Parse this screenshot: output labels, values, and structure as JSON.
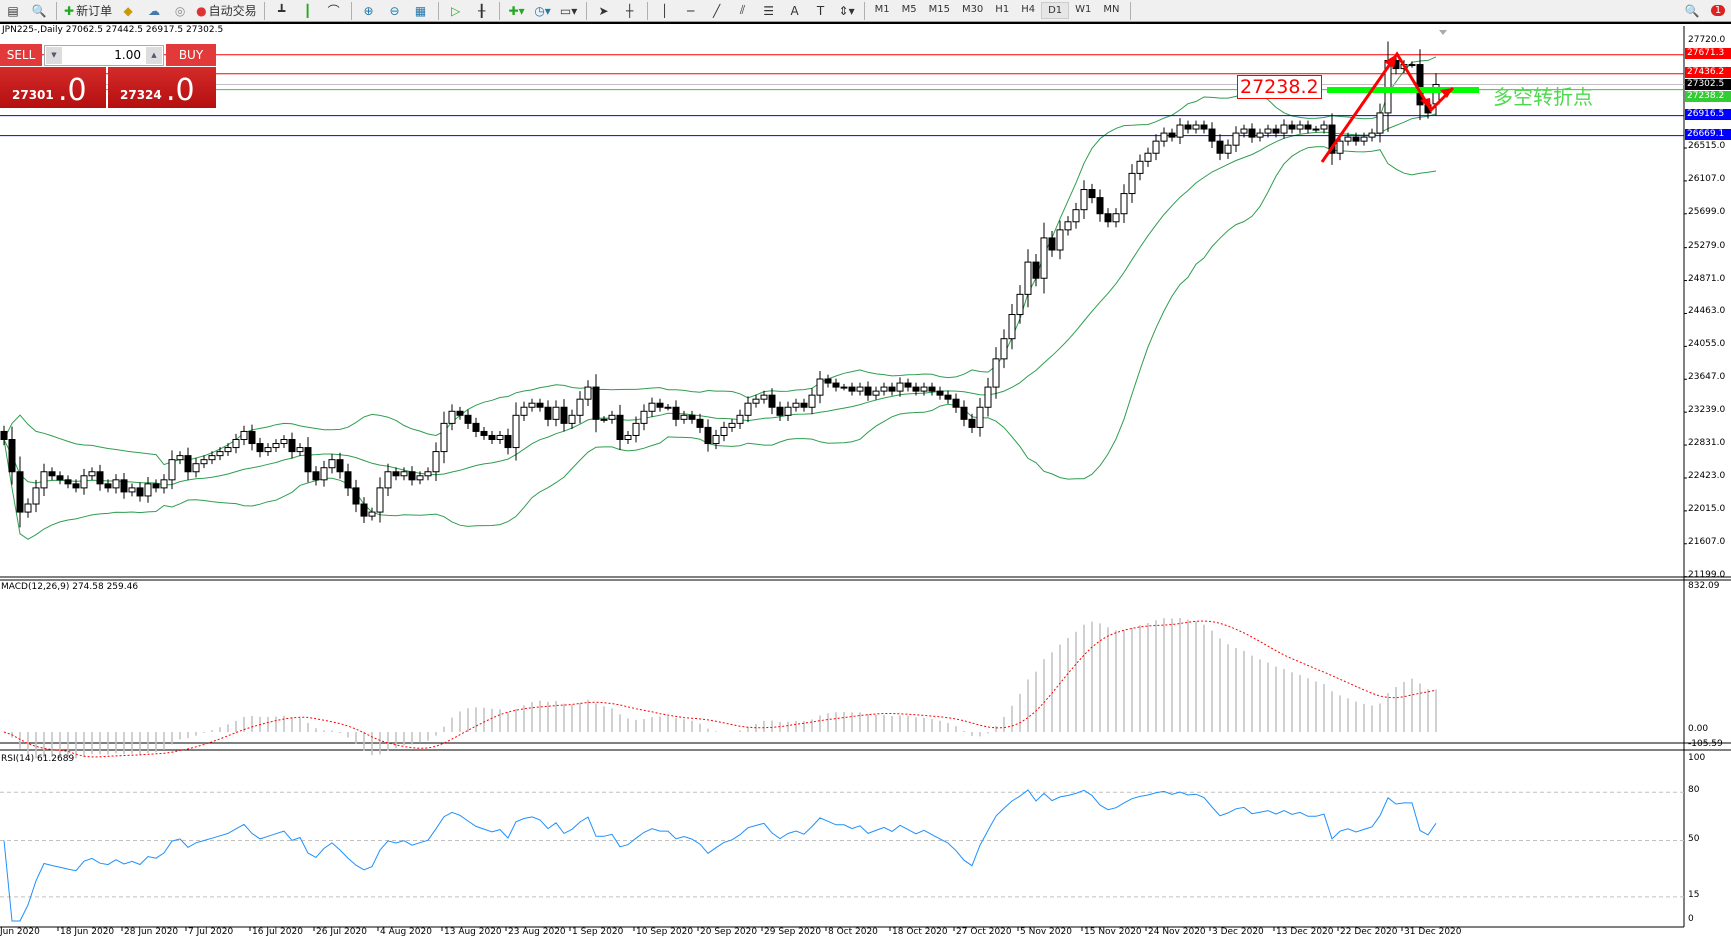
{
  "toolbar": {
    "new_order": "新订单",
    "auto_trading": "自动交易",
    "timeframes": [
      "M1",
      "M5",
      "M15",
      "M30",
      "H1",
      "H4",
      "D1",
      "W1",
      "MN"
    ],
    "active_timeframe": "D1",
    "notification_count": "1"
  },
  "chart": {
    "symbol_line": "JPN225-,Daily  27062.5 27442.5 26917.5 27302.5"
  },
  "trade_panel": {
    "sell_label": "SELL",
    "buy_label": "BUY",
    "lot_value": "1.00",
    "sell_price_main": "27301",
    "sell_price_decimal": ".0",
    "buy_price_main": "27324",
    "buy_price_decimal": ".0"
  },
  "price_axis": {
    "ticks": [
      "26515.0",
      "26107.0",
      "25699.0",
      "25279.0",
      "24871.0",
      "24463.0",
      "24055.0",
      "23647.0",
      "23239.0",
      "22831.0",
      "22423.0",
      "22015.0",
      "21607.0",
      "21199.0"
    ],
    "top_label": "27720.0",
    "lines": [
      {
        "price": 27671.3,
        "label": "27671.3",
        "color": "#ff0000"
      },
      {
        "price": 27436.2,
        "label": "27436.2",
        "color": "#ff0000"
      },
      {
        "price": 27302.5,
        "label": "27302.5",
        "color": "#000000",
        "line_color": "#c0c0c0"
      },
      {
        "price": 27238.2,
        "label": "27238.2",
        "color": "#32cd32"
      },
      {
        "price": 26916.5,
        "label": "26916.5",
        "color": "#0000ff"
      },
      {
        "price": 26669.1,
        "label": "26669.1",
        "color": "#0000ff"
      }
    ]
  },
  "annotations": {
    "price_box": "27238.2",
    "zone_text": "多空转折点",
    "zone_color": "#00ff00",
    "arrow_color": "#ff0000"
  },
  "macd": {
    "label": "MACD(12,26,9) 274.58 259.46",
    "axis": [
      "832.09",
      "0.00",
      "-105.59"
    ]
  },
  "rsi": {
    "label": "RSI(14) 61.2689",
    "axis": [
      "100",
      "80",
      "50",
      "15",
      "0"
    ]
  },
  "dates": [
    "Jun 2020",
    "18 Jun 2020",
    "28 Jun 2020",
    "7 Jul 2020",
    "16 Jul 2020",
    "26 Jul 2020",
    "4 Aug 2020",
    "13 Aug 2020",
    "23 Aug 2020",
    "1 Sep 2020",
    "10 Sep 2020",
    "20 Sep 2020",
    "29 Sep 2020",
    "8 Oct 2020",
    "18 Oct 2020",
    "27 Oct 2020",
    "5 Nov 2020",
    "15 Nov 2020",
    "24 Nov 2020",
    "3 Dec 2020",
    "13 Dec 2020",
    "22 Dec 2020",
    "31 Dec 2020"
  ],
  "chart_data": {
    "type": "candlestick",
    "symbol": "JPN225-",
    "timeframe": "Daily",
    "indicators": [
      "Bollinger Bands(20,2)",
      "MACD(12,26,9)",
      "RSI(14)"
    ],
    "ylim": [
      21199.0,
      27720.0
    ],
    "closes": [
      22900,
      22500,
      22000,
      22100,
      22300,
      22500,
      22450,
      22400,
      22350,
      22300,
      22450,
      22500,
      22350,
      22300,
      22400,
      22250,
      22300,
      22200,
      22350,
      22300,
      22400,
      22650,
      22700,
      22500,
      22600,
      22650,
      22700,
      22750,
      22800,
      22900,
      23000,
      22850,
      22750,
      22800,
      22850,
      22900,
      22750,
      22800,
      22500,
      22400,
      22550,
      22650,
      22500,
      22300,
      22100,
      21950,
      22000,
      22300,
      22500,
      22450,
      22500,
      22400,
      22450,
      22500,
      22750,
      23100,
      23250,
      23200,
      23100,
      23000,
      22950,
      22900,
      22950,
      22800,
      23200,
      23300,
      23350,
      23300,
      23150,
      23300,
      23100,
      23200,
      23400,
      23550,
      23150,
      23150,
      23200,
      22900,
      22950,
      23100,
      23250,
      23350,
      23300,
      23300,
      23150,
      23200,
      23150,
      23050,
      22850,
      22950,
      23050,
      23100,
      23200,
      23350,
      23400,
      23450,
      23300,
      23200,
      23300,
      23350,
      23300,
      23450,
      23650,
      23600,
      23550,
      23550,
      23500,
      23550,
      23450,
      23500,
      23550,
      23500,
      23600,
      23550,
      23500,
      23550,
      23500,
      23450,
      23400,
      23300,
      23150,
      23050,
      23300,
      23550,
      23900,
      24150,
      24450,
      24700,
      25100,
      24900,
      25400,
      25250,
      25500,
      25600,
      25750,
      26000,
      25900,
      25700,
      25600,
      25700,
      25950,
      26200,
      26350,
      26450,
      26600,
      26700,
      26650,
      26800,
      26750,
      26800,
      26750,
      26600,
      26450,
      26550,
      26700,
      26750,
      26650,
      26700,
      26750,
      26700,
      26800,
      26750,
      26800,
      26750,
      26750,
      26800,
      26450,
      26600,
      26650,
      26600,
      26650,
      26700,
      26950,
      27600,
      27500,
      27550,
      27550,
      27050,
      26950,
      27302.5
    ],
    "last_bar": {
      "open": 27062.5,
      "high": 27442.5,
      "low": 26917.5,
      "close": 27302.5
    }
  }
}
